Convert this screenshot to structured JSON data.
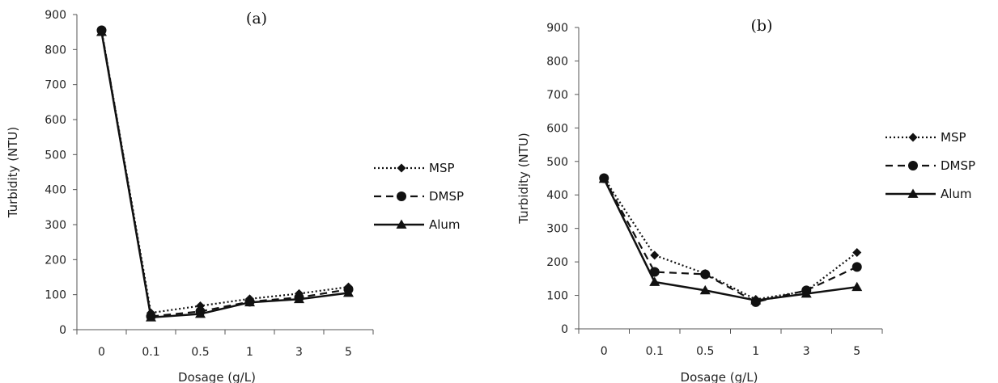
{
  "chart_data": [
    {
      "type": "line",
      "title": "(a)",
      "xlabel": "Dosage (g/L)",
      "ylabel": "Turbidity (NTU)",
      "categories": [
        "0",
        "0.1",
        "0.5",
        "1",
        "3",
        "5"
      ],
      "ylim": [
        0,
        900
      ],
      "yticks": [
        0,
        100,
        200,
        300,
        400,
        500,
        600,
        700,
        800,
        900
      ],
      "grid": false,
      "legend_position": "right",
      "series": [
        {
          "name": "MSP",
          "style": "dotted",
          "marker": "diamond",
          "values": [
            855,
            48,
            68,
            88,
            103,
            122
          ]
        },
        {
          "name": "DMSP",
          "style": "dashed",
          "marker": "circle",
          "values": [
            855,
            38,
            52,
            80,
            92,
            115
          ]
        },
        {
          "name": "Alum",
          "style": "solid",
          "marker": "triangle",
          "values": [
            850,
            35,
            45,
            78,
            87,
            105
          ]
        }
      ]
    },
    {
      "type": "line",
      "title": "(b)",
      "xlabel": "Dosage (g/L)",
      "ylabel": "Turbidity (NTU)",
      "categories": [
        "0",
        "0.1",
        "0.5",
        "1",
        "3",
        "5"
      ],
      "ylim": [
        0,
        900
      ],
      "yticks": [
        0,
        100,
        200,
        300,
        400,
        500,
        600,
        700,
        800,
        900
      ],
      "grid": false,
      "legend_position": "right",
      "series": [
        {
          "name": "MSP",
          "style": "dotted",
          "marker": "diamond",
          "values": [
            450,
            220,
            165,
            88,
            113,
            228
          ]
        },
        {
          "name": "DMSP",
          "style": "dashed",
          "marker": "circle",
          "values": [
            450,
            170,
            163,
            80,
            115,
            185
          ]
        },
        {
          "name": "Alum",
          "style": "solid",
          "marker": "triangle",
          "values": [
            448,
            140,
            115,
            85,
            105,
            125
          ]
        }
      ]
    }
  ]
}
